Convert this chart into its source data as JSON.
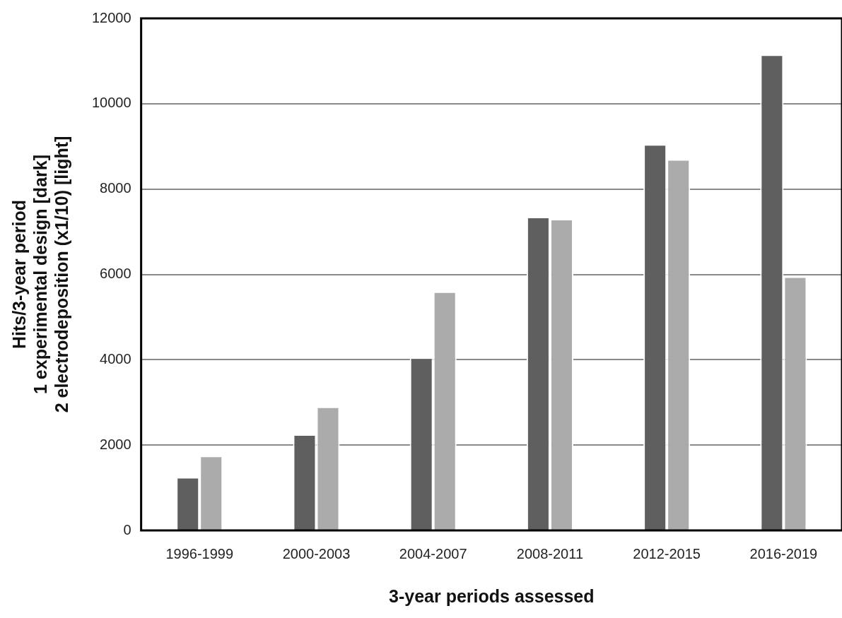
{
  "chart_data": {
    "type": "bar",
    "xlabel": "3-year periods assessed",
    "ylabel": "Hits/3-year period\n1 experimental design [dark]\n2 electrodeposition (x1/10) [light]",
    "categories": [
      "1996-1999",
      "2000-2003",
      "2004-2007",
      "2008-2011",
      "2012-2015",
      "2016-2019"
    ],
    "series": [
      {
        "color": "#5f5f5f",
        "values": [
          1250,
          2250,
          4050,
          7350,
          9050,
          11150
        ]
      },
      {
        "color": "#ababab",
        "values": [
          1750,
          2900,
          5600,
          7300,
          8700,
          5950
        ]
      }
    ],
    "ylim": [
      0,
      12000
    ],
    "yticks": [
      0,
      2000,
      4000,
      6000,
      8000,
      10000,
      12000
    ],
    "grid": "y",
    "legend": false
  }
}
